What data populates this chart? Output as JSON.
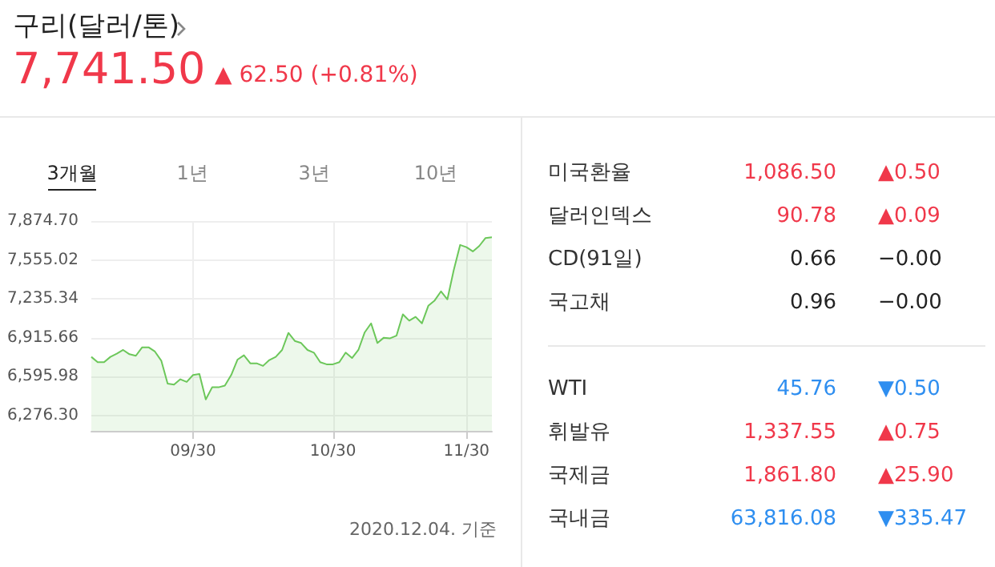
{
  "chart_data": [
    {
      "type": "area",
      "title": "구리(달러/톤)",
      "annotations": [
        "7,741.50",
        "▲ 62.50 (+0.81%)",
        "3개월",
        "1년",
        "3년",
        "10년",
        "2020.12.04. 기준"
      ],
      "categories": [
        null,
        null,
        null,
        null,
        null,
        null,
        null,
        null,
        null,
        null,
        null,
        null,
        null,
        null,
        null,
        null,
        "09/30",
        null,
        null,
        null,
        null,
        null,
        null,
        null,
        null,
        null,
        null,
        null,
        null,
        null,
        null,
        null,
        null,
        null,
        null,
        null,
        null,
        null,
        "10/30",
        null,
        null,
        null,
        null,
        null,
        null,
        null,
        null,
        null,
        null,
        null,
        null,
        null,
        null,
        null,
        null,
        null,
        null,
        null,
        null,
        "11/30",
        null,
        null,
        null,
        null
      ],
      "values": [
        6758,
        6714,
        6714,
        6758,
        6784,
        6815,
        6780,
        6767,
        6837,
        6837,
        6802,
        6727,
        6539,
        6530,
        6574,
        6552,
        6609,
        6618,
        6408,
        6508,
        6508,
        6522,
        6609,
        6736,
        6771,
        6705,
        6705,
        6684,
        6732,
        6758,
        6815,
        6955,
        6889,
        6872,
        6815,
        6793,
        6714,
        6697,
        6697,
        6714,
        6793,
        6749,
        6815,
        6960,
        7034,
        6872,
        6916,
        6911,
        6933,
        7108,
        7056,
        7087,
        7034,
        7178,
        7222,
        7297,
        7231,
        7472,
        7678,
        7660,
        7625,
        7669,
        7735,
        7742
      ],
      "color": "#6cc75a",
      "ylim": [
        6150,
        7874.7
      ],
      "yticks": [
        {
          "value": 6276.3,
          "label": "6,276.30"
        },
        {
          "value": 6595.98,
          "label": "6,595.98"
        },
        {
          "value": 6915.66,
          "label": "6,915.66"
        },
        {
          "value": 7235.34,
          "label": "7,235.34"
        },
        {
          "value": 7555.02,
          "label": "7,555.02"
        },
        {
          "value": 7874.7,
          "label": "7,874.70"
        }
      ],
      "grid": true,
      "marker": "none"
    },
    {
      "type": "other",
      "data_labels": true,
      "categories": [
        "미국환율",
        "달러인덱스",
        "CD(91일)",
        "국고채",
        null,
        "WTI",
        "휘발유",
        "국제금",
        "국내금"
      ],
      "series": [
        {
          "values": [
            1086.5,
            90.78,
            0.66,
            0.96,
            null,
            45.76,
            1337.55,
            1861.8,
            63816.08
          ],
          "value_labels": [
            "1,086.50",
            "90.78",
            "0.66",
            "0.96",
            null,
            "45.76",
            "1,337.55",
            "1,861.80",
            "63,816.08"
          ],
          "colors": [
            "#f0384a",
            "#f0384a",
            "#222222",
            "#222222",
            null,
            "#2e8ef0",
            "#f0384a",
            "#f0384a",
            "#2e8ef0"
          ]
        },
        {
          "values": [
            0.5,
            0.09,
            0,
            0,
            null,
            0.5,
            0.75,
            25.9,
            335.47
          ],
          "value_labels": [
            "▲0.50",
            "▲0.09",
            "−0.00",
            "−0.00",
            null,
            "▼0.50",
            "▲0.75",
            "▲25.90",
            "▼335.47"
          ],
          "colors": [
            "#f0384a",
            "#f0384a",
            "#222222",
            "#222222",
            null,
            "#2e8ef0",
            "#f0384a",
            "#f0384a",
            "#2e8ef0"
          ]
        }
      ]
    }
  ]
}
